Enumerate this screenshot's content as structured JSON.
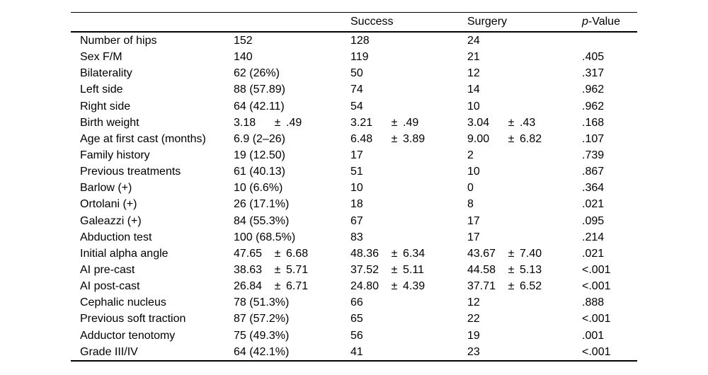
{
  "table": {
    "header": {
      "success": "Success",
      "surgery": "Surgery",
      "p_italic": "p",
      "p_rest": "-Value"
    },
    "rows": [
      {
        "label": "Number of hips",
        "total": {
          "v": "152"
        },
        "success": {
          "v": "128"
        },
        "surgery": {
          "v": "24"
        },
        "p": ""
      },
      {
        "label": "Sex F/M",
        "total": {
          "v": "140"
        },
        "success": {
          "v": "119"
        },
        "surgery": {
          "v": "21"
        },
        "p": ".405"
      },
      {
        "label": "Bilaterality",
        "total": {
          "v": "62 (26%)"
        },
        "success": {
          "v": "50"
        },
        "surgery": {
          "v": "12"
        },
        "p": ".317"
      },
      {
        "label": "Left side",
        "total": {
          "v": "88 (57.89)"
        },
        "success": {
          "v": "74"
        },
        "surgery": {
          "v": "14"
        },
        "p": ".962"
      },
      {
        "label": "Right side",
        "total": {
          "v": "64 (42.11)"
        },
        "success": {
          "v": "54"
        },
        "surgery": {
          "v": "10"
        },
        "p": ".962"
      },
      {
        "label": "Birth weight",
        "total": {
          "v": "3.18",
          "pm": "±",
          "sd": ".49"
        },
        "success": {
          "v": "3.21",
          "pm": "±",
          "sd": ".49"
        },
        "surgery": {
          "v": "3.04",
          "pm": "±",
          "sd": ".43"
        },
        "p": ".168"
      },
      {
        "label": "Age at first cast (months)",
        "total": {
          "v": "6.9 (2–26)"
        },
        "success": {
          "v": "6.48",
          "pm": "±",
          "sd": "3.89"
        },
        "surgery": {
          "v": "9.00",
          "pm": "±",
          "sd": "6.82"
        },
        "p": ".107"
      },
      {
        "label": "Family history",
        "total": {
          "v": "19 (12.50)"
        },
        "success": {
          "v": "17"
        },
        "surgery": {
          "v": "2"
        },
        "p": ".739"
      },
      {
        "label": "Previous treatments",
        "total": {
          "v": "61 (40.13)"
        },
        "success": {
          "v": "51"
        },
        "surgery": {
          "v": "10"
        },
        "p": ".867"
      },
      {
        "label": "Barlow (+)",
        "total": {
          "v": "10 (6.6%)"
        },
        "success": {
          "v": "10"
        },
        "surgery": {
          "v": "0"
        },
        "p": ".364"
      },
      {
        "label": "Ortolani (+)",
        "total": {
          "v": "26 (17.1%)"
        },
        "success": {
          "v": "18"
        },
        "surgery": {
          "v": "8"
        },
        "p": ".021"
      },
      {
        "label": "Galeazzi (+)",
        "total": {
          "v": "84 (55.3%)"
        },
        "success": {
          "v": "67"
        },
        "surgery": {
          "v": "17"
        },
        "p": ".095"
      },
      {
        "label": "Abduction test",
        "total": {
          "v": "100 (68.5%)"
        },
        "success": {
          "v": "83"
        },
        "surgery": {
          "v": "17"
        },
        "p": ".214"
      },
      {
        "label": "Initial alpha angle",
        "total": {
          "v": "47.65",
          "pm": "±",
          "sd": "6.68"
        },
        "success": {
          "v": "48.36",
          "pm": "±",
          "sd": "6.34"
        },
        "surgery": {
          "v": "43.67",
          "pm": "±",
          "sd": "7.40"
        },
        "p": ".021"
      },
      {
        "label": "AI pre-cast",
        "total": {
          "v": "38.63",
          "pm": "±",
          "sd": "5.71"
        },
        "success": {
          "v": "37.52",
          "pm": "±",
          "sd": "5.11"
        },
        "surgery": {
          "v": "44.58",
          "pm": "±",
          "sd": "5.13"
        },
        "p": "<.001"
      },
      {
        "label": "AI post-cast",
        "total": {
          "v": "26.84",
          "pm": "±",
          "sd": "6.71"
        },
        "success": {
          "v": "24.80",
          "pm": "±",
          "sd": "4.39"
        },
        "surgery": {
          "v": "37.71",
          "pm": "±",
          "sd": "6.52"
        },
        "p": "<.001"
      },
      {
        "label": "Cephalic nucleus",
        "total": {
          "v": "78 (51.3%)"
        },
        "success": {
          "v": "66"
        },
        "surgery": {
          "v": "12"
        },
        "p": ".888"
      },
      {
        "label": "Previous soft traction",
        "total": {
          "v": "87 (57.2%)"
        },
        "success": {
          "v": "65"
        },
        "surgery": {
          "v": "22"
        },
        "p": "<.001"
      },
      {
        "label": "Adductor tenotomy",
        "total": {
          "v": "75 (49.3%)"
        },
        "success": {
          "v": "56"
        },
        "surgery": {
          "v": "19"
        },
        "p": ".001"
      },
      {
        "label": "Grade III/IV",
        "total": {
          "v": "64 (42.1%)"
        },
        "success": {
          "v": "41"
        },
        "surgery": {
          "v": "23"
        },
        "p": "<.001"
      }
    ]
  }
}
